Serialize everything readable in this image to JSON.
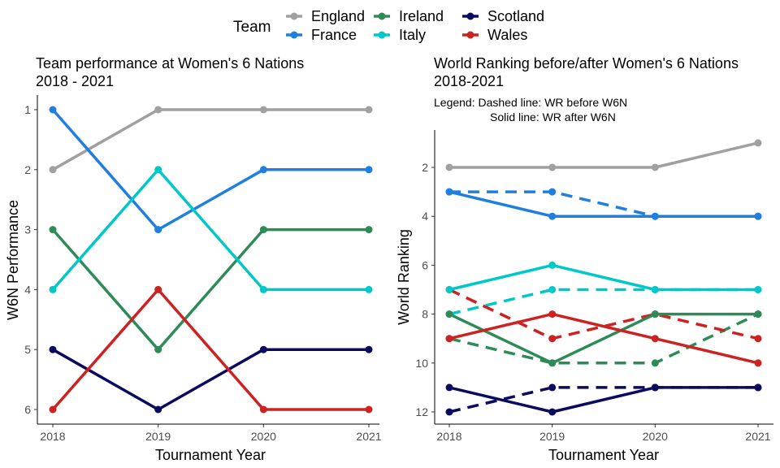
{
  "legend": {
    "title": "Team",
    "entries": [
      {
        "name": "England",
        "color": "#A0A0A0"
      },
      {
        "name": "France",
        "color": "#1E7FE0"
      },
      {
        "name": "Ireland",
        "color": "#2E8B57"
      },
      {
        "name": "Italy",
        "color": "#00C8C8"
      },
      {
        "name": "Scotland",
        "color": "#0A0A5E"
      },
      {
        "name": "Wales",
        "color": "#CC2222"
      }
    ]
  },
  "chart_data": [
    {
      "type": "line",
      "title_lines": [
        "Team performance at Women's 6 Nations",
        "2018 - 2021"
      ],
      "xlabel": "Tournament Year",
      "ylabel": "W6N Performance",
      "x": [
        2018,
        2019,
        2020,
        2021
      ],
      "y_reversed": true,
      "ylim": [
        1,
        6
      ],
      "yticks": [
        1,
        2,
        3,
        4,
        5,
        6
      ],
      "grid": false,
      "series": [
        {
          "name": "England",
          "values": [
            2,
            1,
            1,
            1
          ]
        },
        {
          "name": "France",
          "values": [
            1,
            3,
            2,
            2
          ]
        },
        {
          "name": "Ireland",
          "values": [
            3,
            5,
            3,
            3
          ]
        },
        {
          "name": "Italy",
          "values": [
            4,
            2,
            4,
            4
          ]
        },
        {
          "name": "Scotland",
          "values": [
            5,
            6,
            5,
            5
          ]
        },
        {
          "name": "Wales",
          "values": [
            6,
            4,
            6,
            6
          ]
        }
      ]
    },
    {
      "type": "line",
      "title_lines": [
        "World Ranking before/after Women's 6 Nations",
        "2018-2021"
      ],
      "note_lines": [
        "Legend: Dashed line: WR before W6N",
        "Solid line: WR after W6N"
      ],
      "xlabel": "Tournament Year",
      "ylabel": "World Ranking",
      "x": [
        2018,
        2019,
        2020,
        2021
      ],
      "y_reversed": true,
      "ylim": [
        1,
        12
      ],
      "yticks": [
        2,
        4,
        6,
        8,
        10,
        12
      ],
      "grid": false,
      "series_after": [
        {
          "name": "England",
          "values": [
            2,
            2,
            2,
            1
          ]
        },
        {
          "name": "France",
          "values": [
            3,
            4,
            4,
            4
          ]
        },
        {
          "name": "Ireland",
          "values": [
            8,
            10,
            8,
            8
          ]
        },
        {
          "name": "Italy",
          "values": [
            7,
            6,
            7,
            7
          ]
        },
        {
          "name": "Scotland",
          "values": [
            11,
            12,
            11,
            11
          ]
        },
        {
          "name": "Wales",
          "values": [
            9,
            8,
            9,
            10
          ]
        }
      ],
      "series_before": [
        {
          "name": "France",
          "values": [
            3,
            3,
            4,
            4
          ]
        },
        {
          "name": "Ireland",
          "values": [
            9,
            10,
            10,
            8
          ]
        },
        {
          "name": "Italy",
          "values": [
            8,
            7,
            7,
            7
          ]
        },
        {
          "name": "Scotland",
          "values": [
            12,
            11,
            11,
            11
          ]
        },
        {
          "name": "Wales",
          "values": [
            7,
            9,
            8,
            9
          ]
        }
      ]
    }
  ]
}
